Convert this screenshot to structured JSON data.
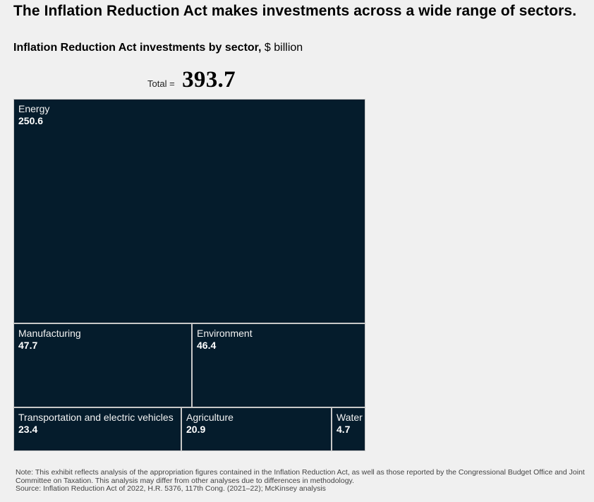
{
  "headline": "The Inflation Reduction Act makes investments across a wide range of sectors.",
  "subtitle_bold": "Inflation Reduction Act investments by sector,",
  "subtitle_unit": "$ billion",
  "total_label": "Total =",
  "total_value": "393.7",
  "chart_data": {
    "type": "treemap",
    "title": "Inflation Reduction Act investments by sector",
    "unit": "$ billion",
    "total": 393.7,
    "categories": [
      "Energy",
      "Manufacturing",
      "Environment",
      "Transportation and electric vehicles",
      "Agriculture",
      "Water"
    ],
    "values": [
      250.6,
      47.7,
      46.4,
      23.4,
      20.9,
      4.7
    ],
    "value_labels": [
      "250.6",
      "47.7",
      "46.4",
      "23.4",
      "20.9",
      "4.7"
    ],
    "rows": [
      [
        0
      ],
      [
        1,
        2
      ],
      [
        3,
        4,
        5
      ]
    ],
    "colors": {
      "tile": "#051c2c",
      "border": "#c8c8c8",
      "background": "#f0f0f0"
    }
  },
  "notes": {
    "note": "Note: This exhibit reflects analysis of the appropriation figures contained in the Inflation Reduction Act, as well as those reported by the Congressional Budget Office and Joint Committee on Taxation. This analysis may differ from other analyses due to differences in methodology.",
    "source": "Source: Inflation Reduction Act of 2022, H.R. 5376, 117th Cong. (2021–22); McKinsey analysis"
  }
}
